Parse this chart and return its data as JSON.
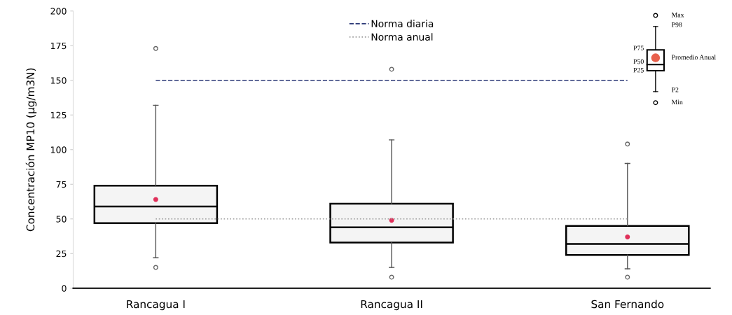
{
  "chart_data": {
    "type": "box",
    "ylabel": "Concentración MP10 (µg/m3N)",
    "categories": [
      "Rancagua I",
      "Rancagua II",
      "San Fernando"
    ],
    "boxes": [
      {
        "low": 22,
        "q1": 47,
        "median": 59,
        "q3": 74,
        "high": 132,
        "mean": 64,
        "outliers": [
          173,
          15
        ]
      },
      {
        "low": 15,
        "q1": 33,
        "median": 44,
        "q3": 61,
        "high": 107,
        "mean": 49,
        "outliers": [
          158,
          8
        ]
      },
      {
        "low": 14,
        "q1": 24,
        "median": 32,
        "q3": 45,
        "high": 90,
        "mean": 37,
        "outliers": [
          104,
          8
        ]
      }
    ],
    "color": "#f4f4f4",
    "ylim": [
      0,
      200
    ],
    "yticks": [
      0,
      25,
      50,
      75,
      100,
      125,
      150,
      175,
      200
    ],
    "ref_lines": [
      {
        "axis": "y",
        "value": 150,
        "label": "Norma diaria",
        "color": "#2e3a78",
        "line_style": "dashed"
      },
      {
        "axis": "y",
        "value": 50,
        "label": "Norma anual",
        "color": "#9a9a9a",
        "line_style": "dotted"
      }
    ],
    "legend": "top",
    "grid": false,
    "annotations": [
      "Max",
      "P98",
      "P75",
      "P50",
      "P25",
      "P2",
      "Min",
      "Promedio Anual"
    ]
  }
}
